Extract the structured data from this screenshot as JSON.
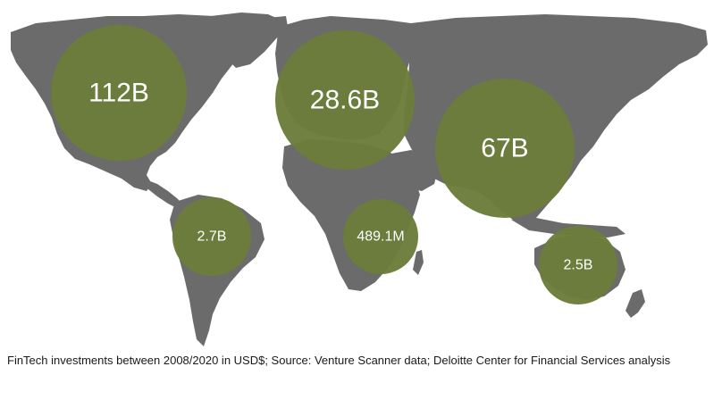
{
  "colors": {
    "land": "#6b6b6b",
    "bubble": "#6b7d3c",
    "label": "#ffffff",
    "background": "#ffffff"
  },
  "regions": [
    {
      "id": "north-america",
      "label": "112B",
      "value_usd_billion": 112
    },
    {
      "id": "europe",
      "label": "28.6B",
      "value_usd_billion": 28.6
    },
    {
      "id": "asia",
      "label": "67B",
      "value_usd_billion": 67
    },
    {
      "id": "south-america",
      "label": "2.7B",
      "value_usd_billion": 2.7
    },
    {
      "id": "africa",
      "label": "489.1M",
      "value_usd_billion": 0.4891
    },
    {
      "id": "oceania",
      "label": "2.5B",
      "value_usd_billion": 2.5
    }
  ],
  "caption": "FinTech investments between 2008/2020 in USD$; Source: Venture Scanner data; Deloitte Center for Financial Services analysis"
}
